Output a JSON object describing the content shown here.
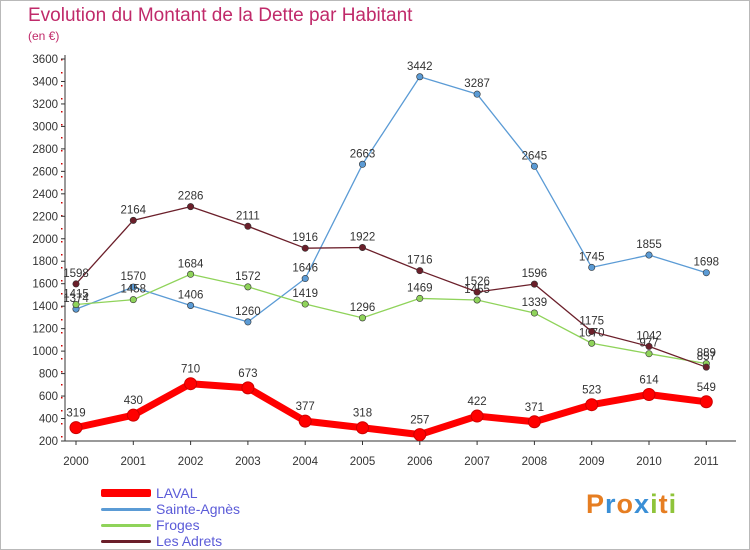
{
  "chart_data": {
    "type": "line",
    "title": "Evolution du Montant de la Dette par Habitant",
    "subtitle": "(en €)",
    "x": [
      "2000",
      "2001",
      "2002",
      "2003",
      "2004",
      "2005",
      "2006",
      "2007",
      "2008",
      "2009",
      "2010",
      "2011"
    ],
    "yticks": [
      200,
      400,
      600,
      800,
      1000,
      1200,
      1400,
      1600,
      1800,
      2000,
      2200,
      2400,
      2600,
      2800,
      3000,
      3200,
      3400,
      3600
    ],
    "ylim": [
      200,
      3600
    ],
    "grid": false,
    "legend_position": "bottom-left",
    "series": [
      {
        "name": "LAVAL",
        "color": "#ff0000",
        "values": [
          319,
          430,
          710,
          673,
          377,
          318,
          257,
          422,
          371,
          523,
          614,
          549
        ]
      },
      {
        "name": "Sainte-Agnès",
        "color": "#5b9bd5",
        "values": [
          1374,
          1570,
          1406,
          1260,
          1646,
          2663,
          3442,
          3287,
          2645,
          1745,
          1855,
          1698
        ]
      },
      {
        "name": "Froges",
        "color": "#8fd35a",
        "values": [
          1415,
          1458,
          1684,
          1572,
          1419,
          1296,
          1469,
          1455,
          1339,
          1070,
          977,
          889
        ]
      },
      {
        "name": "Les Adrets",
        "color": "#6b1f2a",
        "values": [
          1598,
          2164,
          2286,
          2111,
          1916,
          1922,
          1716,
          1526,
          1596,
          1175,
          1042,
          857
        ]
      }
    ]
  },
  "logo": {
    "letters": [
      {
        "ch": "P",
        "color": "#e67e22"
      },
      {
        "ch": "r",
        "color": "#3a8fd6"
      },
      {
        "ch": "o",
        "color": "#e67e22"
      },
      {
        "ch": "x",
        "color": "#3a8fd6"
      },
      {
        "ch": "i",
        "color": "#8fc43a"
      },
      {
        "ch": "t",
        "color": "#e67e22"
      },
      {
        "ch": "i",
        "color": "#8fc43a"
      }
    ]
  }
}
